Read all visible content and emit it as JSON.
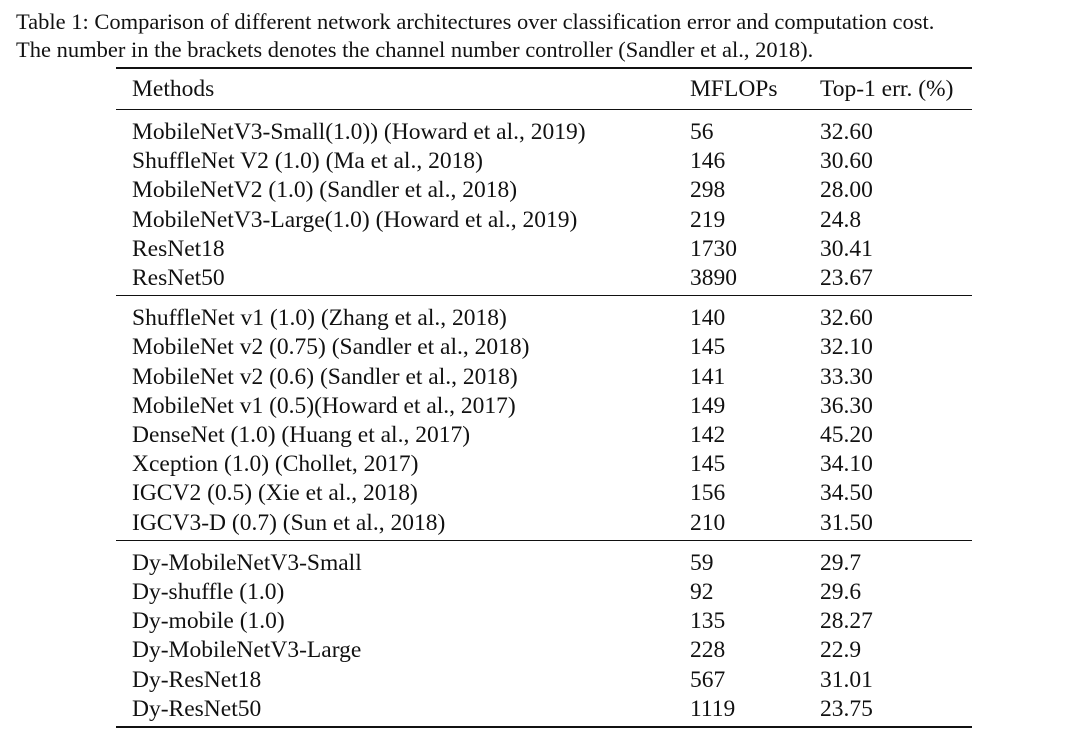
{
  "caption": {
    "line1": "Table 1: Comparison of different network architectures over classification error and computation cost.",
    "line2": "The number in the brackets denotes the channel number controller (Sandler et al., 2018)."
  },
  "table": {
    "headers": [
      "Methods",
      "MFLOPs",
      "Top-1 err. (%)"
    ],
    "groups": [
      {
        "rows": [
          [
            "MobileNetV3-Small(1.0)) (Howard et al., 2019)",
            "56",
            "32.60"
          ],
          [
            "ShuffleNet V2 (1.0) (Ma et al., 2018)",
            "146",
            "30.60"
          ],
          [
            "MobileNetV2 (1.0) (Sandler et al., 2018)",
            "298",
            "28.00"
          ],
          [
            "MobileNetV3-Large(1.0) (Howard et al., 2019)",
            "219",
            "24.8"
          ],
          [
            "ResNet18",
            "1730",
            "30.41"
          ],
          [
            "ResNet50",
            "3890",
            "23.67"
          ]
        ]
      },
      {
        "rows": [
          [
            "ShuffleNet v1 (1.0) (Zhang et al., 2018)",
            "140",
            "32.60"
          ],
          [
            "MobileNet v2 (0.75) (Sandler et al., 2018)",
            "145",
            "32.10"
          ],
          [
            "MobileNet v2 (0.6) (Sandler et al., 2018)",
            "141",
            "33.30"
          ],
          [
            "MobileNet v1 (0.5)(Howard et al., 2017)",
            "149",
            "36.30"
          ],
          [
            "DenseNet (1.0) (Huang et al., 2017)",
            "142",
            "45.20"
          ],
          [
            "Xception (1.0) (Chollet, 2017)",
            "145",
            "34.10"
          ],
          [
            "IGCV2 (0.5) (Xie et al., 2018)",
            "156",
            "34.50"
          ],
          [
            "IGCV3-D (0.7) (Sun et al., 2018)",
            "210",
            "31.50"
          ]
        ]
      },
      {
        "rows": [
          [
            "Dy-MobileNetV3-Small",
            "59",
            "29.7"
          ],
          [
            "Dy-shuffle (1.0)",
            "92",
            "29.6"
          ],
          [
            "Dy-mobile (1.0)",
            "135",
            "28.27"
          ],
          [
            "Dy-MobileNetV3-Large",
            "228",
            "22.9"
          ],
          [
            "Dy-ResNet18",
            "567",
            "31.01"
          ],
          [
            "Dy-ResNet50",
            "1119",
            "23.75"
          ]
        ]
      }
    ]
  }
}
